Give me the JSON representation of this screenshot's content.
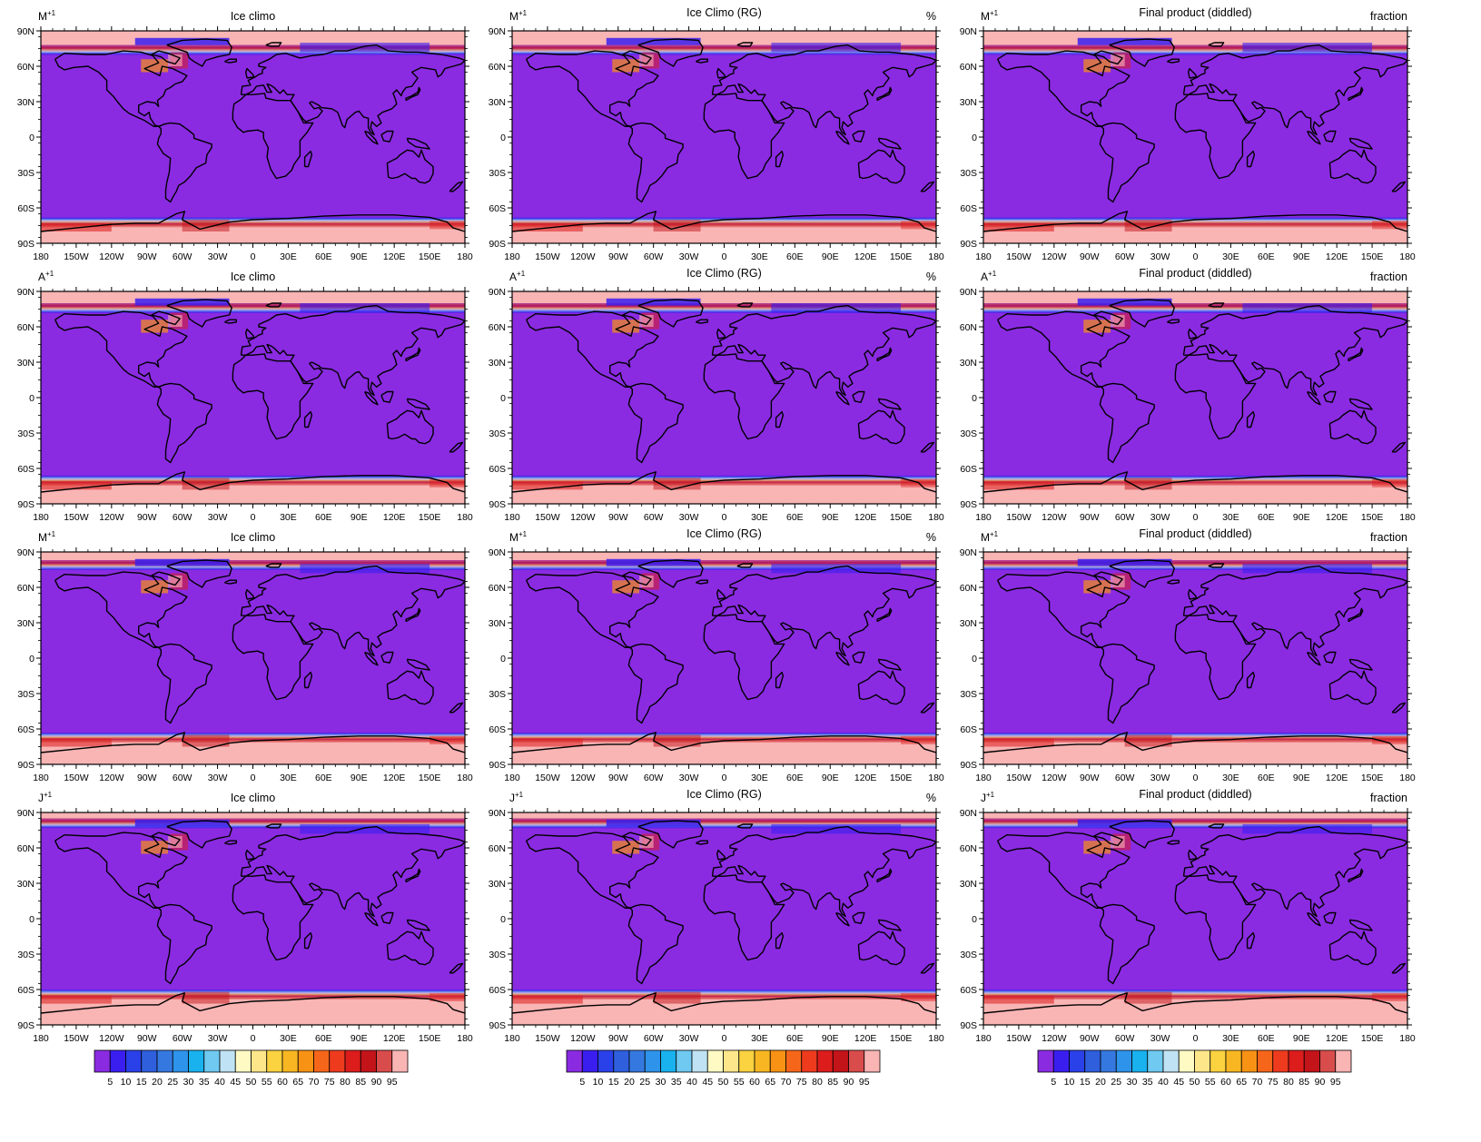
{
  "figure": {
    "columns": [
      {
        "title": "Ice climo",
        "units": ""
      },
      {
        "title": "Ice Climo (RG)",
        "units": "%"
      },
      {
        "title": "Final product (diddled)",
        "units": "fraction"
      }
    ],
    "rows": [
      {
        "left_label": "M",
        "superscript": "+1",
        "extent_n": 90,
        "extent_s": -90,
        "nh_edge": 70,
        "sh_edge": -68
      },
      {
        "left_label": "A",
        "superscript": "+1",
        "extent_n": 90,
        "extent_s": -90,
        "nh_edge": 72,
        "sh_edge": -66
      },
      {
        "left_label": "M",
        "superscript": "+1",
        "extent_n": 90,
        "extent_s": -90,
        "nh_edge": 75,
        "sh_edge": -63
      },
      {
        "left_label": "J",
        "superscript": "+1",
        "extent_n": 90,
        "extent_s": -90,
        "nh_edge": 77,
        "sh_edge": -60
      }
    ],
    "lat_ticks": [
      "90N",
      "60N",
      "30N",
      "0",
      "30S",
      "60S",
      "90S"
    ],
    "lat_values": [
      90,
      60,
      30,
      0,
      -30,
      -60,
      -90
    ],
    "lon_ticks": [
      "180",
      "150W",
      "120W",
      "90W",
      "60W",
      "30W",
      "0",
      "30E",
      "60E",
      "90E",
      "120E",
      "150E",
      "180"
    ],
    "lon_values": [
      -180,
      -150,
      -120,
      -90,
      -60,
      -30,
      0,
      30,
      60,
      90,
      120,
      150,
      180
    ],
    "colorbar": {
      "labels": [
        "5",
        "10",
        "15",
        "20",
        "25",
        "30",
        "35",
        "40",
        "45",
        "50",
        "55",
        "60",
        "65",
        "70",
        "75",
        "80",
        "85",
        "90",
        "95"
      ],
      "colors": [
        "#8a2be2",
        "#3a1ef0",
        "#2a40e8",
        "#2f5fdd",
        "#3579e0",
        "#2e93ea",
        "#19b1ee",
        "#6fc9f0",
        "#bfe3f4",
        "#fffac4",
        "#fde68a",
        "#fbd23f",
        "#f8b722",
        "#f89214",
        "#f6661a",
        "#ee3b1e",
        "#dd1c1c",
        "#c3141a",
        "#d94c4c",
        "#f9b4b4"
      ]
    },
    "fill_colors": {
      "open_water": "#8a2be2",
      "pack_ice": "#f9b4b4",
      "coastline": "#000000"
    }
  }
}
